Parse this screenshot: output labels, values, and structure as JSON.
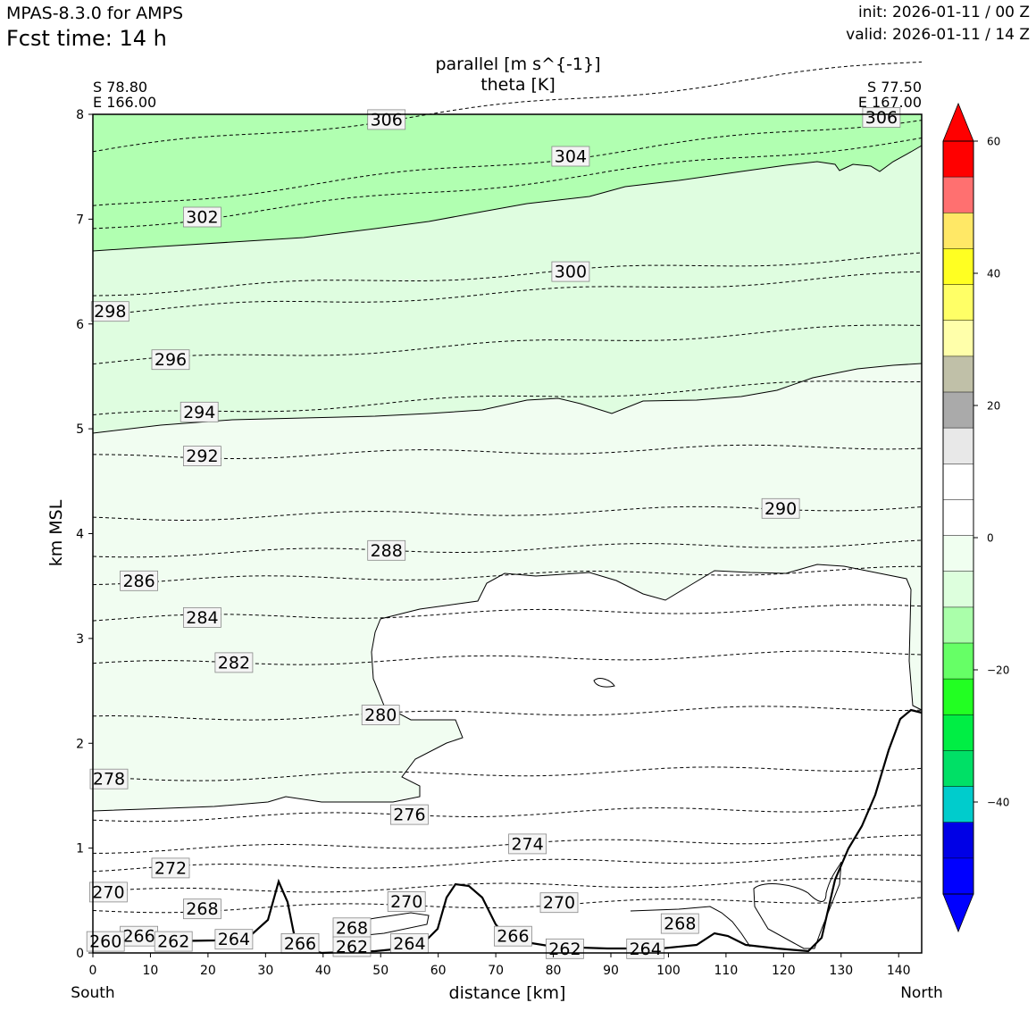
{
  "header": {
    "model_title": "MPAS-8.3.0 for AMPS",
    "forecast_time_label": "Fcst time:   14 h",
    "init_label": "init: 2026-01-11 / 00 Z",
    "valid_label": "valid: 2026-01-11 / 14 Z"
  },
  "chart_data": {
    "type": "contour",
    "title_line1": "parallel [m s^{-1}]",
    "title_line2": "theta [K]",
    "xlabel": "distance [km]",
    "ylabel": "km MSL",
    "xlim": [
      0,
      144
    ],
    "ylim": [
      0,
      8
    ],
    "x_ticks": [
      0,
      10,
      20,
      30,
      40,
      50,
      60,
      70,
      80,
      90,
      100,
      110,
      120,
      130,
      140
    ],
    "y_ticks": [
      0,
      1,
      2,
      3,
      4,
      5,
      6,
      7,
      8
    ],
    "start_point": {
      "lat": "S 78.80",
      "lon": "E 166.00",
      "side": "South"
    },
    "end_point": {
      "lat": "S 77.50",
      "lon": "E 167.00",
      "side": "North"
    },
    "theta_contour_labels": [
      {
        "label": "306",
        "x": 51,
        "y": 7.95
      },
      {
        "label": "306",
        "x": 137,
        "y": 7.97
      },
      {
        "label": "304",
        "x": 83,
        "y": 7.6
      },
      {
        "label": "302",
        "x": 19,
        "y": 7.02
      },
      {
        "label": "300",
        "x": 83,
        "y": 6.5
      },
      {
        "label": "298",
        "x": 3,
        "y": 6.12
      },
      {
        "label": "296",
        "x": 13.5,
        "y": 5.66
      },
      {
        "label": "294",
        "x": 18.5,
        "y": 5.16
      },
      {
        "label": "292",
        "x": 19,
        "y": 4.74
      },
      {
        "label": "290",
        "x": 119.5,
        "y": 4.24
      },
      {
        "label": "288",
        "x": 51,
        "y": 3.84
      },
      {
        "label": "286",
        "x": 8,
        "y": 3.55
      },
      {
        "label": "284",
        "x": 19,
        "y": 3.2
      },
      {
        "label": "282",
        "x": 24.5,
        "y": 2.77
      },
      {
        "label": "280",
        "x": 50,
        "y": 2.27
      },
      {
        "label": "278",
        "x": 2.8,
        "y": 1.66
      },
      {
        "label": "276",
        "x": 55,
        "y": 1.32
      },
      {
        "label": "274",
        "x": 75.5,
        "y": 1.04
      },
      {
        "label": "272",
        "x": 13.5,
        "y": 0.81
      },
      {
        "label": "270",
        "x": 2.7,
        "y": 0.58
      },
      {
        "label": "270",
        "x": 54.5,
        "y": 0.49
      },
      {
        "label": "270",
        "x": 81,
        "y": 0.48
      },
      {
        "label": "268",
        "x": 19,
        "y": 0.42
      },
      {
        "label": "268",
        "x": 45,
        "y": 0.24
      },
      {
        "label": "268",
        "x": 102,
        "y": 0.28
      },
      {
        "label": "266",
        "x": 8,
        "y": 0.16
      },
      {
        "label": "266",
        "x": 36,
        "y": 0.09
      },
      {
        "label": "266",
        "x": 73,
        "y": 0.16
      },
      {
        "label": "264",
        "x": 24.5,
        "y": 0.13
      },
      {
        "label": "264",
        "x": 55,
        "y": 0.09
      },
      {
        "label": "264",
        "x": 96,
        "y": 0.04
      },
      {
        "label": "262",
        "x": 14,
        "y": 0.11
      },
      {
        "label": "262",
        "x": 45,
        "y": 0.06
      },
      {
        "label": "262",
        "x": 82,
        "y": 0.04
      },
      {
        "label": "260",
        "x": 2.2,
        "y": 0.11
      }
    ],
    "colorbar": {
      "colors": [
        "#0000ff",
        "#0000ff",
        "#0000e6",
        "#00cccc",
        "#00e066",
        "#00ee44",
        "#22ff22",
        "#66ff66",
        "#aaffaa",
        "#ddffdd",
        "#f0fff0",
        "#ffffff",
        "#ffffff",
        "#e8e8e8",
        "#aaaaaa",
        "#c0c0a8",
        "#ffffaa",
        "#ffff66",
        "#ffff22",
        "#ffe866",
        "#ff7070",
        "#ff0000",
        "#ff0000"
      ],
      "tick_labels": [
        "60",
        "40",
        "20",
        "0",
        "−20",
        "−40"
      ],
      "tick_values": [
        60,
        40,
        20,
        0,
        -20,
        -40
      ]
    },
    "fill_colors": {
      "green_mid": "#b1ffb1",
      "green_light": "#dffde0",
      "green_pale": "#f1fdf1",
      "white": "#ffffff"
    }
  }
}
